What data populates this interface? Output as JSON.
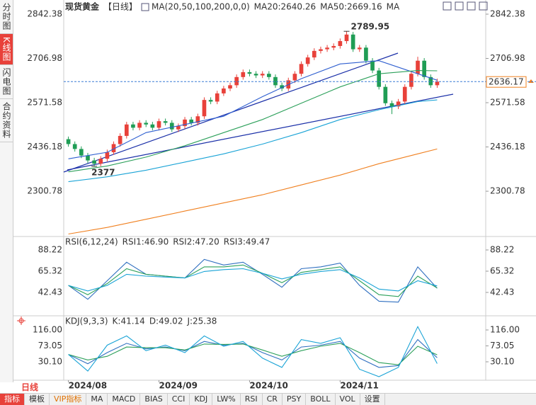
{
  "sidebar": [
    "分时图",
    "K线图",
    "闪电图",
    "合约资料"
  ],
  "period_switch": "日线",
  "toolbar": [
    "指标",
    "模板",
    "VIP指标",
    "MA",
    "MACD",
    "BIAS",
    "CCI",
    "KDJ",
    "LW%",
    "RSI",
    "CR",
    "PSY",
    "BOLL",
    "VOL",
    "设置"
  ],
  "chart_data": [
    {
      "type": "candlestick",
      "title": "现货黄金",
      "period": "【日线】",
      "indicator": "MA(20,50,100,200,0,0)",
      "up_color": "#e8413a",
      "down_color": "#1f9d55",
      "xlim": [
        -0.5,
        57.5
      ],
      "ylim": [
        2166.67,
        2868.34
      ],
      "yticks": [
        2300.78,
        2436.18,
        2571.58,
        2706.98,
        2842.38
      ],
      "open": [
        2460,
        2445,
        2430,
        2410,
        2395,
        2385,
        2400,
        2420,
        2445,
        2470,
        2505,
        2495,
        2510,
        2505,
        2495,
        2515,
        2510,
        2490,
        2500,
        2520,
        2510,
        2530,
        2580,
        2575,
        2600,
        2615,
        2625,
        2650,
        2665,
        2660,
        2655,
        2660,
        2650,
        2625,
        2615,
        2640,
        2660,
        2690,
        2710,
        2730,
        2735,
        2740,
        2745,
        2760,
        2780,
        2735,
        2740,
        2700,
        2670,
        2620,
        2570,
        2560,
        2575,
        2620,
        2660,
        2700,
        2650,
        2625
      ],
      "high": [
        2468,
        2453,
        2438,
        2418,
        2403,
        2408,
        2428,
        2453,
        2478,
        2513,
        2513,
        2518,
        2518,
        2513,
        2523,
        2523,
        2518,
        2508,
        2528,
        2528,
        2538,
        2588,
        2588,
        2608,
        2623,
        2633,
        2658,
        2673,
        2673,
        2668,
        2668,
        2668,
        2658,
        2633,
        2648,
        2668,
        2698,
        2718,
        2738,
        2743,
        2748,
        2753,
        2768,
        2789.95,
        2788,
        2748,
        2748,
        2708,
        2678,
        2628,
        2578,
        2583,
        2628,
        2668,
        2712,
        2708,
        2658,
        2645
      ],
      "low": [
        2437,
        2422,
        2402,
        2387,
        2377,
        2377,
        2392,
        2412,
        2437,
        2462,
        2487,
        2487,
        2497,
        2487,
        2487,
        2502,
        2482,
        2482,
        2492,
        2502,
        2502,
        2522,
        2567,
        2567,
        2592,
        2607,
        2617,
        2642,
        2652,
        2647,
        2647,
        2642,
        2617,
        2607,
        2607,
        2632,
        2652,
        2682,
        2702,
        2722,
        2727,
        2732,
        2737,
        2752,
        2727,
        2727,
        2692,
        2662,
        2612,
        2562,
        2536.68,
        2552,
        2567,
        2612,
        2652,
        2642,
        2617,
        2617
      ],
      "close": [
        2445,
        2430,
        2410,
        2395,
        2385,
        2400,
        2420,
        2445,
        2470,
        2505,
        2495,
        2510,
        2505,
        2495,
        2515,
        2510,
        2490,
        2500,
        2520,
        2510,
        2530,
        2580,
        2575,
        2600,
        2615,
        2625,
        2650,
        2665,
        2660,
        2655,
        2660,
        2650,
        2625,
        2615,
        2640,
        2660,
        2690,
        2710,
        2730,
        2735,
        2740,
        2745,
        2760,
        2780,
        2735,
        2740,
        2700,
        2670,
        2620,
        2570,
        2560,
        2575,
        2620,
        2660,
        2700,
        2650,
        2625,
        2636.17
      ],
      "series": [
        {
          "name": "MA20:2640.26",
          "color": "#2f5fd0",
          "x": [
            0,
            6,
            12,
            18,
            24,
            30,
            36,
            42,
            48,
            54,
            57
          ],
          "values": [
            2400,
            2420,
            2480,
            2505,
            2530,
            2590,
            2645,
            2690,
            2700,
            2660,
            2640.26
          ]
        },
        {
          "name": "MA50:2669.16",
          "color": "#2ca05a",
          "x": [
            0,
            6,
            12,
            18,
            24,
            30,
            36,
            42,
            48,
            54,
            57
          ],
          "values": [
            2360,
            2378,
            2405,
            2440,
            2480,
            2520,
            2570,
            2620,
            2660,
            2670,
            2669.16
          ]
        },
        {
          "name": "MA",
          "color": "#19a3d6",
          "x": [
            0,
            6,
            12,
            18,
            24,
            30,
            36,
            42,
            48,
            54,
            57
          ],
          "values": [
            2330,
            2345,
            2365,
            2390,
            2415,
            2445,
            2480,
            2520,
            2550,
            2575,
            2580
          ]
        },
        {
          "color": "#f08020",
          "x": [
            0,
            6,
            12,
            18,
            24,
            30,
            36,
            42,
            48,
            54,
            57
          ],
          "values": [
            2170,
            2190,
            2215,
            2240,
            2265,
            2290,
            2320,
            2350,
            2385,
            2415,
            2430
          ]
        }
      ]
    },
    {
      "type": "line",
      "title": "RSI(6,12,24)",
      "xlim": [
        -0.5,
        57.5
      ],
      "ylim": [
        18.01,
        99.67
      ],
      "yticks": [
        42.43,
        65.32,
        88.22
      ],
      "series": [
        {
          "name": "RSI1:46.90",
          "color": "#2f6fc0",
          "x": [
            0,
            3,
            6,
            9,
            12,
            15,
            18,
            21,
            24,
            27,
            30,
            33,
            36,
            39,
            42,
            45,
            48,
            51,
            54,
            57
          ],
          "values": [
            50,
            35,
            55,
            75,
            62,
            60,
            58,
            78,
            72,
            75,
            62,
            48,
            68,
            70,
            74,
            50,
            33,
            32,
            70,
            46.9
          ]
        },
        {
          "name": "RSI2:47.20",
          "color": "#2ca05a",
          "x": [
            0,
            3,
            6,
            9,
            12,
            15,
            18,
            21,
            24,
            27,
            30,
            33,
            36,
            39,
            42,
            45,
            48,
            51,
            54,
            57
          ],
          "values": [
            50,
            40,
            52,
            68,
            62,
            60,
            58,
            70,
            70,
            72,
            63,
            53,
            64,
            67,
            70,
            55,
            40,
            38,
            60,
            47.2
          ]
        },
        {
          "name": "RSI3:49.47",
          "color": "#19a3d6",
          "x": [
            0,
            3,
            6,
            9,
            12,
            15,
            18,
            21,
            24,
            27,
            30,
            33,
            36,
            39,
            42,
            45,
            48,
            51,
            54,
            57
          ],
          "values": [
            50,
            44,
            50,
            62,
            60,
            59,
            58,
            65,
            67,
            68,
            63,
            57,
            62,
            65,
            67,
            58,
            46,
            44,
            55,
            49.47
          ]
        }
      ]
    },
    {
      "type": "line",
      "title": "KDJ(9,3,3)",
      "xlim": [
        -0.5,
        57.5
      ],
      "ylim": [
        -15.72,
        150.36
      ],
      "yticks": [
        {
          "value": 30.1,
          "label": "30.10"
        },
        73.05,
        {
          "value": 116,
          "label": "116.00"
        }
      ],
      "xticks": [
        {
          "value": 0,
          "label": "2024/08"
        },
        {
          "value": 14,
          "label": "2024/09"
        },
        {
          "value": 28,
          "label": "2024/10"
        },
        {
          "value": 42,
          "label": "2024/11"
        }
      ],
      "series": [
        {
          "name": "K:41.14",
          "color": "#2f6fc0",
          "x": [
            0,
            3,
            6,
            9,
            12,
            15,
            18,
            21,
            24,
            27,
            30,
            33,
            36,
            39,
            42,
            45,
            48,
            51,
            54,
            57
          ],
          "values": [
            50,
            25,
            55,
            80,
            65,
            70,
            60,
            85,
            75,
            80,
            55,
            35,
            70,
            75,
            85,
            40,
            15,
            20,
            90,
            41.14
          ]
        },
        {
          "name": "D:49.02",
          "color": "#2ca05a",
          "x": [
            0,
            3,
            6,
            9,
            12,
            15,
            18,
            21,
            24,
            27,
            30,
            33,
            36,
            39,
            42,
            45,
            48,
            51,
            54,
            57
          ],
          "values": [
            50,
            35,
            45,
            70,
            68,
            68,
            62,
            78,
            77,
            78,
            62,
            45,
            60,
            72,
            80,
            55,
            28,
            22,
            72,
            49.02
          ]
        },
        {
          "name": "J:25.38",
          "color": "#19a3d6",
          "x": [
            0,
            3,
            6,
            9,
            12,
            15,
            18,
            21,
            24,
            27,
            30,
            33,
            36,
            39,
            42,
            45,
            48,
            51,
            54,
            57
          ],
          "values": [
            50,
            5,
            75,
            100,
            60,
            75,
            55,
            100,
            72,
            85,
            40,
            15,
            90,
            80,
            95,
            10,
            -10,
            15,
            125,
            25.38
          ]
        }
      ]
    }
  ]
}
